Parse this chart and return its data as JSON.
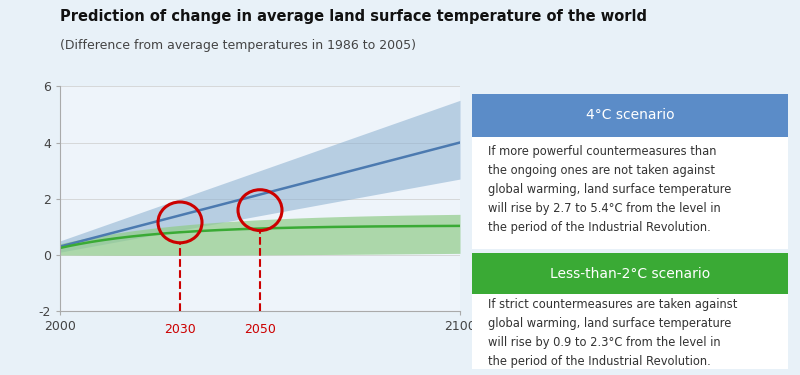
{
  "title": "Prediction of change in average land surface temperature of the world",
  "subtitle": "(Difference from average temperatures in 1986 to 2005)",
  "bg_color": "#e8f1f8",
  "plot_bg_color": "#eef4fa",
  "xlim": [
    2000,
    2100
  ],
  "ylim": [
    -2,
    6
  ],
  "yticks": [
    -2,
    0,
    2,
    4,
    6
  ],
  "blue_line_color": "#4c7ab0",
  "blue_fill_color": "#8aafd0",
  "green_line_color": "#3aaa35",
  "green_fill_color": "#90cc88",
  "circle_color": "#cc0000",
  "dashed_color": "#cc0000",
  "highlight_years": [
    2030,
    2050
  ],
  "box1_header": "4°C scenario",
  "box1_header_bg": "#5b8cc8",
  "box1_header_color": "#ffffff",
  "box1_text": "If more powerful countermeasures than\nthe ongoing ones are not taken against\nglobal warming, land surface temperature\nwill rise by 2.7 to 5.4°C from the level in\nthe period of the Industrial Revolution.",
  "box2_header": "Less-than-2°C scenario",
  "box2_header_bg": "#3aaa35",
  "box2_header_color": "#ffffff",
  "box2_text": "If strict countermeasures are taken against\nglobal warming, land surface temperature\nwill rise by 0.9 to 2.3°C from the level in\nthe period of the Industrial Revolution.",
  "box_bg": "#ffffff",
  "box_text_color": "#333333"
}
